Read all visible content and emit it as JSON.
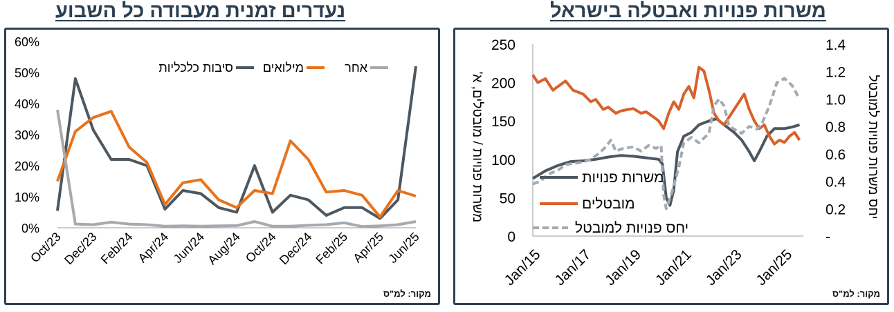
{
  "titles": {
    "left": "נעדרים זמנית מעבודה כל השבוע",
    "right": "משרות פנויות ואבטלה בישראל"
  },
  "source_left": "מקור: למ\"ס",
  "source_right": "מקור: למ\"ס",
  "colors": {
    "dark": "#4d5760",
    "orange": "#e8731c",
    "orange2": "#d9612b",
    "gray": "#a5aab0",
    "frame": "#2f4053"
  },
  "chart_data": [
    {
      "type": "line",
      "title": "נעדרים זמנית מעבודה כל השבוע",
      "x_tick_labels": [
        "Oct/23",
        "Dec/23",
        "Feb/24",
        "Apr/24",
        "Jun/24",
        "Aug/24",
        "Oct/24",
        "Dec/24",
        "Feb/25",
        "Apr/25",
        "Jun/25"
      ],
      "x": [
        "Oct/23",
        "Nov/23",
        "Dec/23",
        "Jan/24",
        "Feb/24",
        "Mar/24",
        "Apr/24",
        "May/24",
        "Jun/24",
        "Jul/24",
        "Aug/24",
        "Sep/24",
        "Oct/24",
        "Nov/24",
        "Dec/24",
        "Jan/25",
        "Feb/25",
        "Mar/25",
        "Apr/25",
        "May/25",
        "Jun/25"
      ],
      "y_ticks": [
        "0%",
        "10%",
        "20%",
        "30%",
        "40%",
        "50%",
        "60%"
      ],
      "ylim": [
        0,
        60
      ],
      "legend_placement": "top",
      "series": [
        {
          "name": "סיבות כלכליות",
          "color": "#4d5760",
          "values": [
            5.5,
            48,
            31.5,
            22,
            22,
            20,
            6,
            12,
            11,
            6.5,
            5,
            20,
            5,
            10.5,
            9,
            4,
            6.5,
            6.5,
            3,
            9,
            52
          ]
        },
        {
          "name": "מילואים",
          "color": "#e8731c",
          "values": [
            15,
            31,
            35.5,
            37.5,
            26,
            21,
            7.5,
            14.5,
            15.5,
            9,
            6.5,
            12,
            11,
            28,
            22,
            11.5,
            12,
            10.5,
            3.5,
            12,
            10.2
          ]
        },
        {
          "name": "אחר",
          "color": "#a5aab0",
          "values": [
            38,
            1.2,
            1,
            1.8,
            1.2,
            1,
            0.5,
            0.6,
            0.5,
            0.6,
            0.7,
            2,
            0.5,
            0.5,
            0.8,
            1,
            1.6,
            0.4,
            0.6,
            1,
            2
          ]
        }
      ]
    },
    {
      "type": "line",
      "title": "משרות פנויות ואבטלה בישראל",
      "ylabel_left": "משרות פנויות / מובטלים, א'",
      "ylabel_right": "יחס משרות פנויות למובטל",
      "x_tick_labels": [
        "Jan/15",
        "Jan/17",
        "Jan/19",
        "Jan/21",
        "Jan/23",
        "Jan/25"
      ],
      "x_range": [
        2015,
        2025.75
      ],
      "y_left_ticks": [
        "0",
        "50",
        "100",
        "150",
        "200",
        "250"
      ],
      "ylim_left": [
        0,
        250
      ],
      "y_right_ticks": [
        "-",
        "0.2",
        "0.4",
        "0.6",
        "0.8",
        "1.0",
        "1.2",
        "1.4"
      ],
      "ylim_right": [
        0,
        1.4
      ],
      "legend_placement": "center-left",
      "series": [
        {
          "name": "משרות פנויות",
          "axis": "left",
          "color": "#4d5760",
          "style": "solid",
          "points": [
            [
              2015,
              75
            ],
            [
              2015.5,
              85
            ],
            [
              2016,
              92
            ],
            [
              2016.5,
              97
            ],
            [
              2017,
              98
            ],
            [
              2017.5,
              100
            ],
            [
              2018,
              103
            ],
            [
              2018.5,
              105
            ],
            [
              2019,
              104
            ],
            [
              2019.5,
              102
            ],
            [
              2020,
              100
            ],
            [
              2020.15,
              94
            ],
            [
              2020.3,
              50
            ],
            [
              2020.45,
              40
            ],
            [
              2020.6,
              60
            ],
            [
              2020.75,
              110
            ],
            [
              2021,
              130
            ],
            [
              2021.3,
              135
            ],
            [
              2021.6,
              145
            ],
            [
              2022,
              150
            ],
            [
              2022.3,
              153
            ],
            [
              2022.6,
              145
            ],
            [
              2023,
              135
            ],
            [
              2023.3,
              125
            ],
            [
              2023.6,
              110
            ],
            [
              2023.8,
              98
            ],
            [
              2024,
              110
            ],
            [
              2024.3,
              130
            ],
            [
              2024.6,
              140
            ],
            [
              2025,
              140
            ],
            [
              2025.3,
              142
            ],
            [
              2025.6,
              145
            ]
          ]
        },
        {
          "name": "מובטלים",
          "axis": "left",
          "color": "#d9612b",
          "style": "solid",
          "points": [
            [
              2015,
              210
            ],
            [
              2015.2,
              200
            ],
            [
              2015.5,
              205
            ],
            [
              2015.8,
              190
            ],
            [
              2016,
              195
            ],
            [
              2016.3,
              202
            ],
            [
              2016.6,
              190
            ],
            [
              2017,
              185
            ],
            [
              2017.3,
              175
            ],
            [
              2017.5,
              178
            ],
            [
              2017.8,
              165
            ],
            [
              2018,
              168
            ],
            [
              2018.3,
              160
            ],
            [
              2018.5,
              163
            ],
            [
              2018.8,
              165
            ],
            [
              2019,
              166
            ],
            [
              2019.3,
              160
            ],
            [
              2019.5,
              162
            ],
            [
              2019.8,
              155
            ],
            [
              2020,
              150
            ],
            [
              2020.2,
              140
            ],
            [
              2020.4,
              160
            ],
            [
              2020.6,
              175
            ],
            [
              2020.8,
              165
            ],
            [
              2021,
              185
            ],
            [
              2021.2,
              195
            ],
            [
              2021.4,
              180
            ],
            [
              2021.6,
              220
            ],
            [
              2021.8,
              215
            ],
            [
              2022,
              190
            ],
            [
              2022.2,
              160
            ],
            [
              2022.4,
              150
            ],
            [
              2022.6,
              145
            ],
            [
              2022.8,
              155
            ],
            [
              2023,
              165
            ],
            [
              2023.2,
              175
            ],
            [
              2023.4,
              185
            ],
            [
              2023.6,
              165
            ],
            [
              2023.8,
              150
            ],
            [
              2024,
              140
            ],
            [
              2024.2,
              145
            ],
            [
              2024.4,
              130
            ],
            [
              2024.6,
              120
            ],
            [
              2024.8,
              125
            ],
            [
              2025,
              122
            ],
            [
              2025.2,
              130
            ],
            [
              2025.4,
              135
            ],
            [
              2025.6,
              125
            ]
          ]
        },
        {
          "name": "יחס פנויות למובטל",
          "axis": "right",
          "color": "#a5aab0",
          "style": "dashed",
          "points": [
            [
              2015,
              0.38
            ],
            [
              2015.3,
              0.4
            ],
            [
              2015.6,
              0.45
            ],
            [
              2016,
              0.48
            ],
            [
              2016.3,
              0.52
            ],
            [
              2016.6,
              0.53
            ],
            [
              2017,
              0.54
            ],
            [
              2017.3,
              0.56
            ],
            [
              2017.6,
              0.6
            ],
            [
              2017.9,
              0.65
            ],
            [
              2018.1,
              0.7
            ],
            [
              2018.3,
              0.62
            ],
            [
              2018.6,
              0.64
            ],
            [
              2019,
              0.65
            ],
            [
              2019.3,
              0.62
            ],
            [
              2019.6,
              0.66
            ],
            [
              2019.9,
              0.64
            ],
            [
              2020.1,
              0.66
            ],
            [
              2020.2,
              0.3
            ],
            [
              2020.3,
              0.2
            ],
            [
              2020.5,
              0.3
            ],
            [
              2020.8,
              0.5
            ],
            [
              2021,
              0.68
            ],
            [
              2021.3,
              0.72
            ],
            [
              2021.6,
              0.68
            ],
            [
              2022,
              0.75
            ],
            [
              2022.2,
              0.95
            ],
            [
              2022.4,
              1.0
            ],
            [
              2022.6,
              0.95
            ],
            [
              2022.8,
              0.8
            ],
            [
              2023,
              0.78
            ],
            [
              2023.3,
              0.75
            ],
            [
              2023.6,
              0.8
            ],
            [
              2023.9,
              0.78
            ],
            [
              2024.1,
              0.82
            ],
            [
              2024.4,
              0.95
            ],
            [
              2024.7,
              1.12
            ],
            [
              2025,
              1.15
            ],
            [
              2025.3,
              1.1
            ],
            [
              2025.6,
              1.0
            ]
          ]
        }
      ]
    }
  ]
}
